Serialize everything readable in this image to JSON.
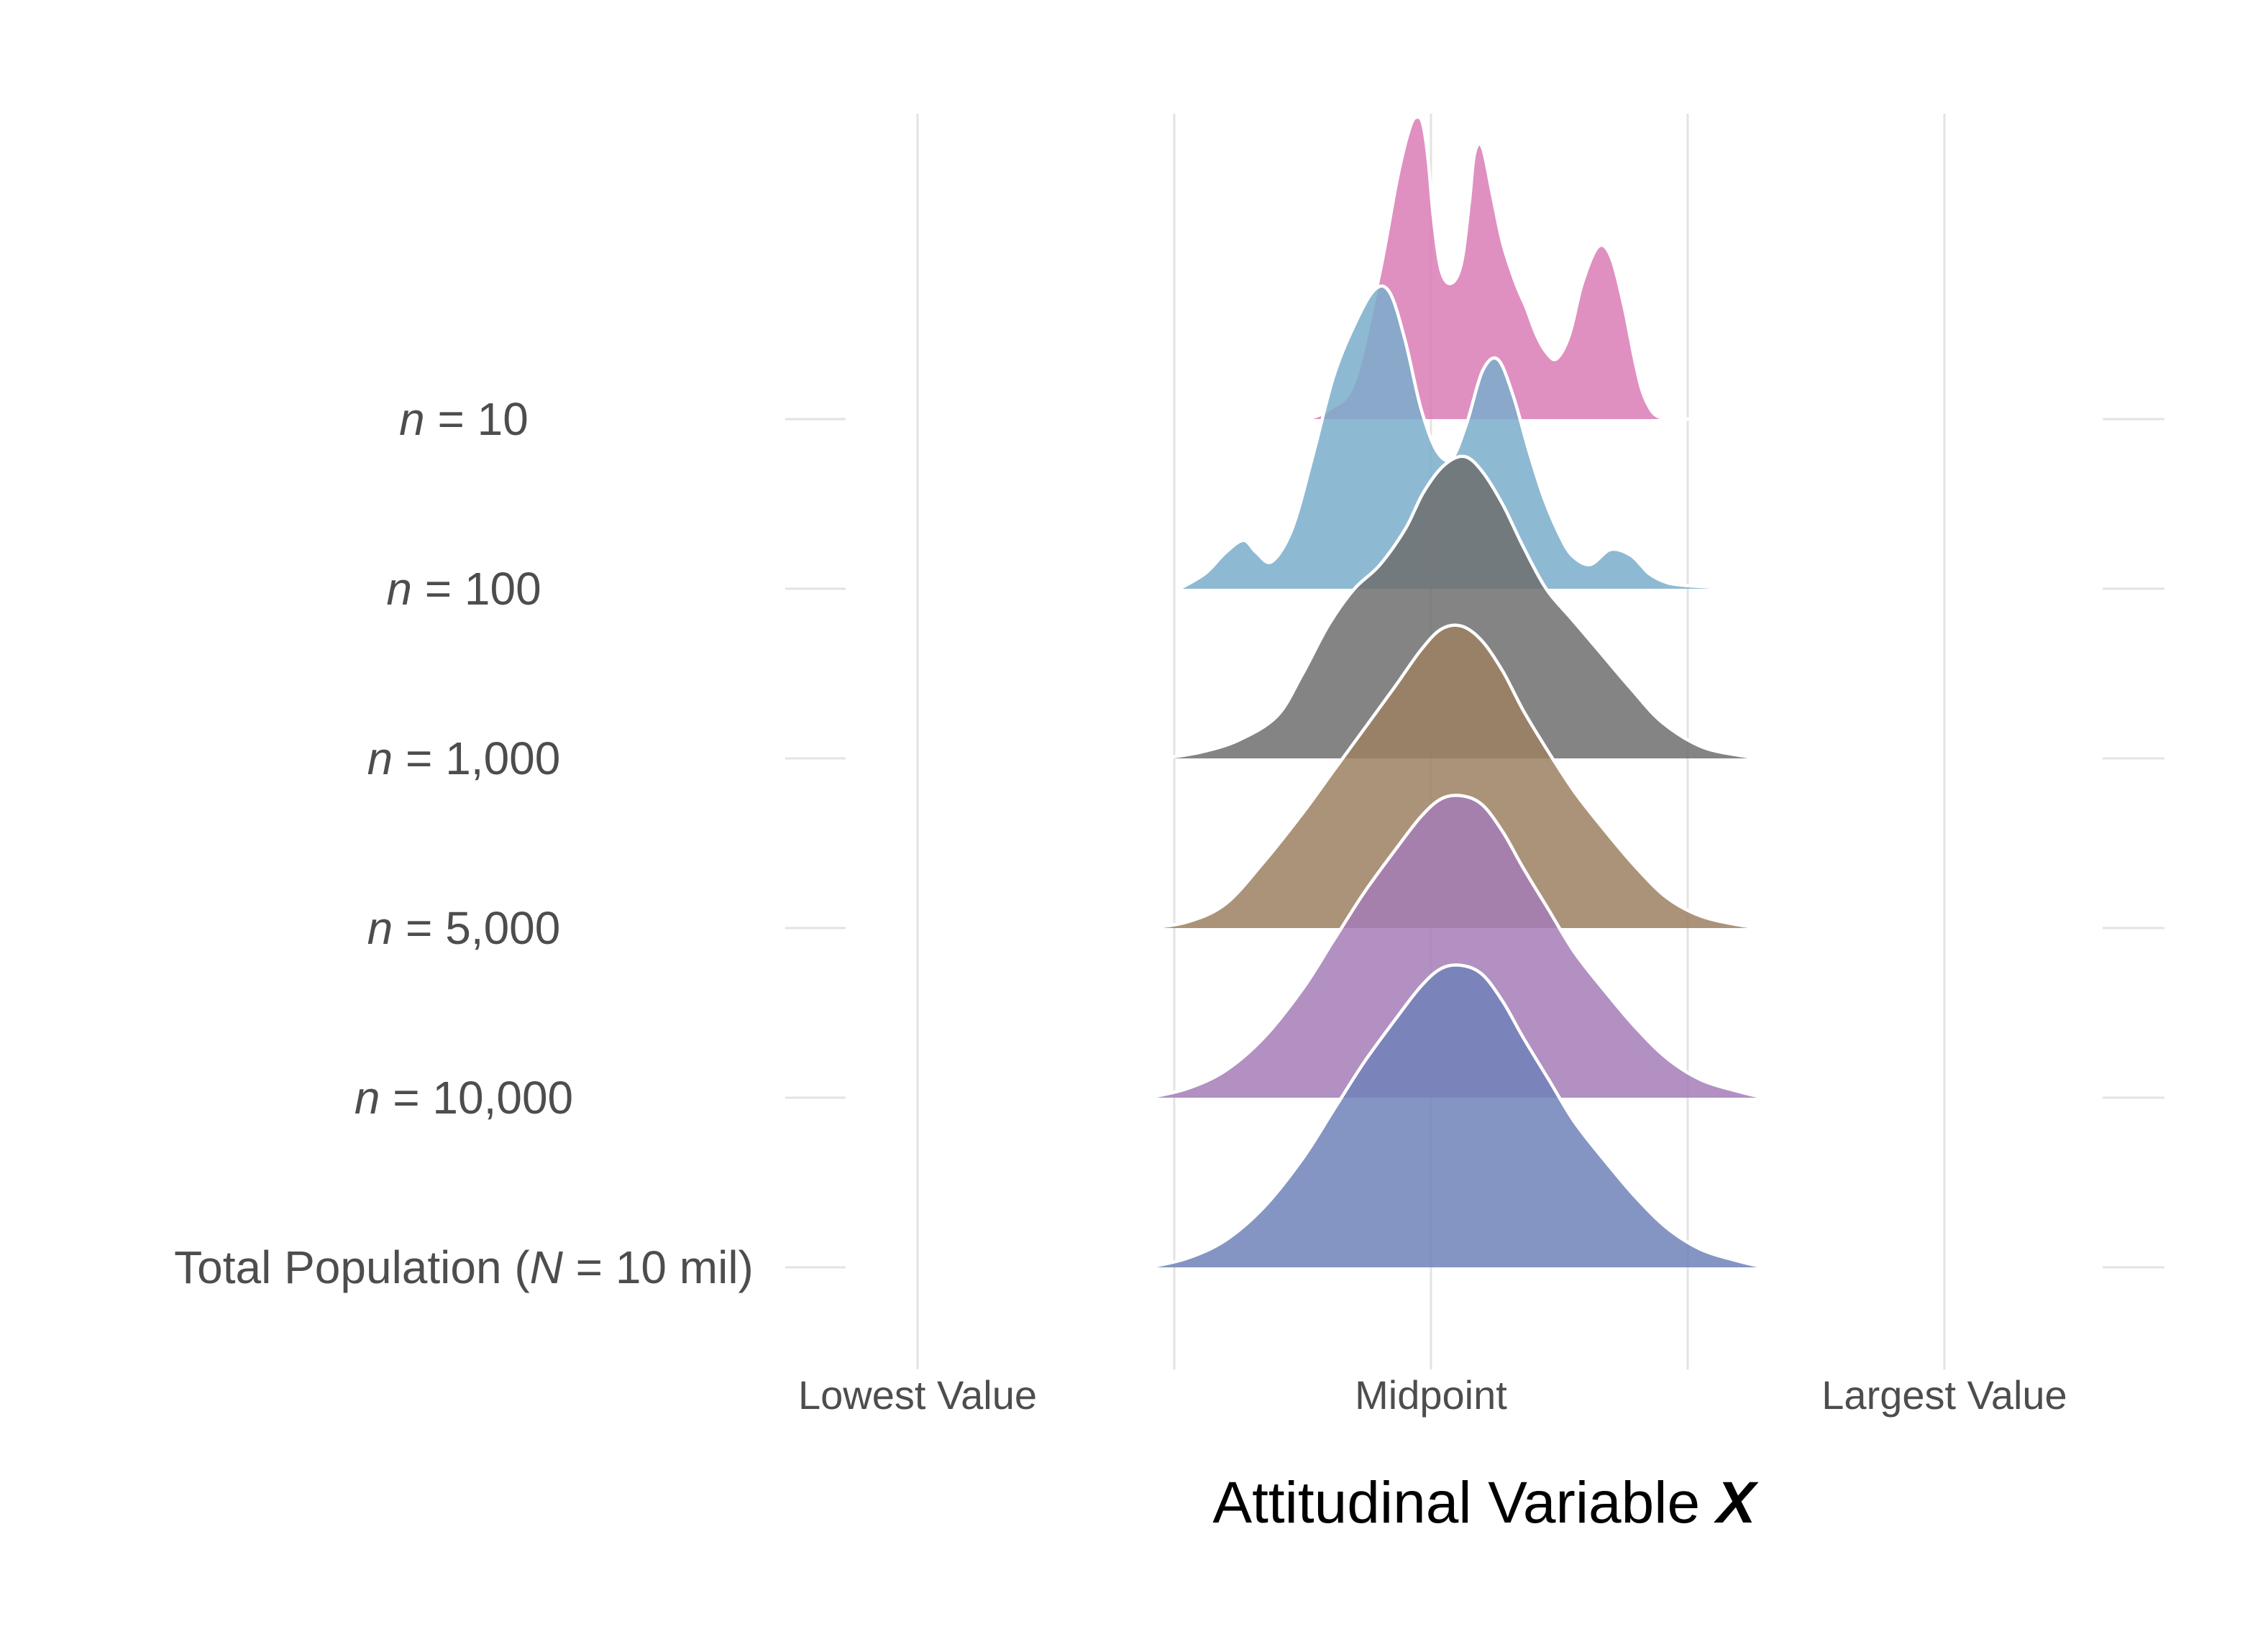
{
  "chart_data": {
    "type": "ridgeline",
    "xlabel": "Attitudinal Variable",
    "xlabel_emph": "X",
    "x_ticks": [
      {
        "value": 1,
        "label": "Lowest Value"
      },
      {
        "value": 3,
        "label": "Midpoint"
      },
      {
        "value": 5,
        "label": "Largest Value"
      }
    ],
    "x_minor_gridlines": [
      2,
      4
    ],
    "x_range": [
      0.5,
      5.5
    ],
    "grid": true,
    "legend": "none",
    "series": [
      {
        "label_prefix": "",
        "label_italic": "n",
        "label_suffix": " = 10",
        "color": "#d97cb6",
        "x": [
          2.52,
          2.6,
          2.7,
          2.8,
          2.87,
          2.92,
          2.95,
          2.97,
          2.99,
          3.01,
          3.04,
          3.08,
          3.12,
          3.15,
          3.17,
          3.2,
          3.24,
          3.28,
          3.33,
          3.37,
          3.41,
          3.45,
          3.49,
          3.54,
          3.59,
          3.65,
          3.7,
          3.75,
          3.79,
          3.82,
          3.85,
          3.88,
          3.93,
          3.98,
          4.05,
          4.1
        ],
        "density": [
          0,
          0.03,
          0.12,
          0.48,
          0.8,
          0.97,
          1.0,
          0.97,
          0.85,
          0.66,
          0.49,
          0.45,
          0.52,
          0.72,
          0.88,
          0.9,
          0.74,
          0.58,
          0.45,
          0.37,
          0.28,
          0.22,
          0.2,
          0.28,
          0.45,
          0.57,
          0.54,
          0.38,
          0.21,
          0.1,
          0.04,
          0.01,
          0,
          0,
          0,
          0
        ]
      },
      {
        "label_prefix": "",
        "label_italic": "n",
        "label_suffix": " = 100",
        "color": "#7aadcb",
        "x": [
          2.02,
          2.12,
          2.2,
          2.27,
          2.32,
          2.38,
          2.46,
          2.54,
          2.62,
          2.7,
          2.78,
          2.84,
          2.9,
          2.96,
          3.02,
          3.08,
          3.14,
          3.2,
          3.26,
          3.32,
          3.38,
          3.44,
          3.5,
          3.55,
          3.62,
          3.7,
          3.78,
          3.85,
          3.92,
          4.0,
          4.1,
          4.2,
          4.27
        ],
        "density": [
          0,
          0.05,
          0.12,
          0.16,
          0.12,
          0.09,
          0.2,
          0.44,
          0.7,
          0.87,
          0.99,
          0.98,
          0.82,
          0.6,
          0.46,
          0.43,
          0.55,
          0.72,
          0.76,
          0.64,
          0.46,
          0.3,
          0.18,
          0.11,
          0.08,
          0.13,
          0.11,
          0.05,
          0.02,
          0.01,
          0.005,
          0.0,
          0
        ]
      },
      {
        "label_prefix": "",
        "label_italic": "n",
        "label_suffix": " = 1,000",
        "color": "#6e6e6e",
        "x": [
          1.95,
          2.1,
          2.25,
          2.4,
          2.5,
          2.6,
          2.7,
          2.8,
          2.9,
          2.97,
          3.05,
          3.13,
          3.2,
          3.28,
          3.36,
          3.45,
          3.55,
          3.65,
          3.78,
          3.9,
          4.05,
          4.2,
          4.3
        ],
        "density": [
          0,
          0.02,
          0.06,
          0.14,
          0.28,
          0.44,
          0.56,
          0.64,
          0.76,
          0.88,
          0.97,
          1.0,
          0.95,
          0.84,
          0.7,
          0.56,
          0.46,
          0.36,
          0.23,
          0.12,
          0.04,
          0.01,
          0
        ]
      },
      {
        "label_prefix": "",
        "label_italic": "n",
        "label_suffix": " = 5,000",
        "color": "#9c8062",
        "x": [
          1.9,
          2.05,
          2.2,
          2.35,
          2.5,
          2.62,
          2.74,
          2.86,
          2.96,
          3.04,
          3.12,
          3.2,
          3.28,
          3.36,
          3.46,
          3.56,
          3.68,
          3.8,
          3.92,
          4.05,
          4.2,
          4.3
        ],
        "density": [
          0,
          0.02,
          0.08,
          0.22,
          0.38,
          0.52,
          0.66,
          0.8,
          0.92,
          0.99,
          1.0,
          0.95,
          0.85,
          0.72,
          0.58,
          0.45,
          0.32,
          0.2,
          0.1,
          0.04,
          0.01,
          0
        ]
      },
      {
        "label_prefix": "",
        "label_italic": "n",
        "label_suffix": " = 10,000",
        "color": "#a57db6",
        "x": [
          1.9,
          2.05,
          2.2,
          2.35,
          2.5,
          2.62,
          2.74,
          2.86,
          2.96,
          3.04,
          3.12,
          3.2,
          3.28,
          3.36,
          3.46,
          3.56,
          3.68,
          3.8,
          3.92,
          4.05,
          4.2,
          4.3
        ],
        "density": [
          0,
          0.03,
          0.09,
          0.2,
          0.36,
          0.52,
          0.68,
          0.82,
          0.93,
          0.99,
          1.0,
          0.97,
          0.88,
          0.76,
          0.62,
          0.48,
          0.35,
          0.23,
          0.13,
          0.06,
          0.02,
          0
        ]
      },
      {
        "label_prefix": "Total Population (",
        "label_italic": "N",
        "label_suffix": " = 10 mil)",
        "color": "#7082b8",
        "x": [
          1.9,
          2.05,
          2.2,
          2.35,
          2.5,
          2.62,
          2.74,
          2.86,
          2.96,
          3.04,
          3.12,
          3.2,
          3.28,
          3.36,
          3.46,
          3.56,
          3.68,
          3.8,
          3.92,
          4.05,
          4.2,
          4.3
        ],
        "density": [
          0,
          0.03,
          0.09,
          0.2,
          0.36,
          0.52,
          0.68,
          0.82,
          0.93,
          0.99,
          1.0,
          0.97,
          0.88,
          0.76,
          0.62,
          0.48,
          0.35,
          0.23,
          0.13,
          0.06,
          0.02,
          0
        ]
      }
    ]
  }
}
